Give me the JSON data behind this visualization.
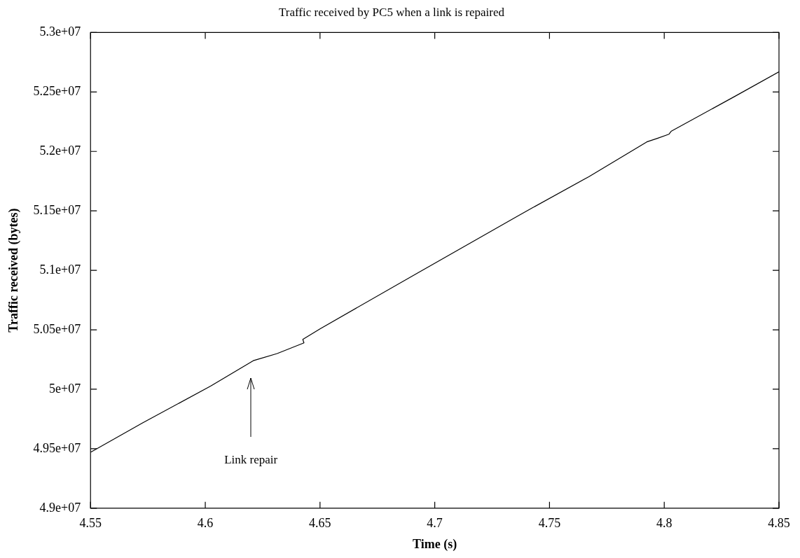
{
  "chart_data": {
    "type": "line",
    "title": "Traffic received by PC5 when a link is repaired",
    "xlabel": "Time (s)",
    "ylabel": "Traffic received (bytes)",
    "series": [
      {
        "color": "#000000",
        "x": [
          4.55,
          4.5727,
          4.6023,
          4.6209,
          4.6313,
          4.643,
          4.6425,
          4.65,
          4.6921,
          4.7354,
          4.7423,
          4.7671,
          4.7924,
          4.797,
          4.802,
          4.803,
          4.8305,
          4.85
        ],
        "values": [
          49470000,
          49717000,
          50026000,
          50240000,
          50300000,
          50390000,
          50419000,
          50508000,
          50973000,
          51448000,
          51523000,
          51787000,
          52080000,
          52110000,
          52144000,
          52169000,
          52460000,
          52670000
        ]
      }
    ],
    "xlim": [
      4.55,
      4.85
    ],
    "xticks": [
      4.55,
      4.6,
      4.65,
      4.7,
      4.75,
      4.8,
      4.85
    ],
    "ylim": [
      49000000,
      53000000
    ],
    "yticks": [
      {
        "value": 49000000,
        "label": "4.9e+07"
      },
      {
        "value": 49500000,
        "label": "4.95e+07"
      },
      {
        "value": 50000000,
        "label": "5e+07"
      },
      {
        "value": 50500000,
        "label": "5.05e+07"
      },
      {
        "value": 51000000,
        "label": "5.1e+07"
      },
      {
        "value": 51500000,
        "label": "5.15e+07"
      },
      {
        "value": 52000000,
        "label": "5.2e+07"
      },
      {
        "value": 52500000,
        "label": "5.25e+07"
      },
      {
        "value": 53000000,
        "label": "5.3e+07"
      }
    ],
    "annotations": [
      "Link repair"
    ],
    "legend": false,
    "grid": false,
    "marker": "none",
    "line_style": "solid"
  }
}
